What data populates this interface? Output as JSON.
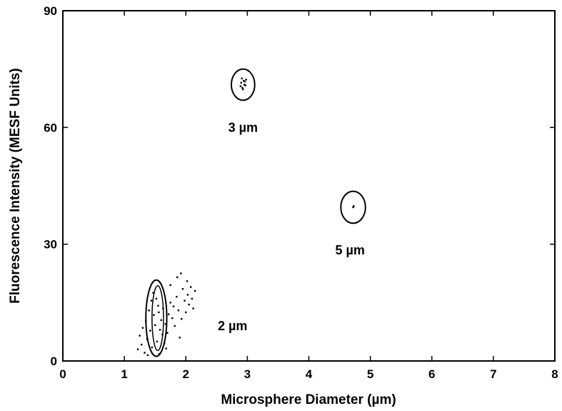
{
  "chart_data": {
    "type": "scatter",
    "xlabel": "Microsphere Diameter (µm)",
    "ylabel": "Fluorescence Intensity (MESF Units)",
    "xlim": [
      0,
      8
    ],
    "ylim": [
      0,
      90
    ],
    "x_ticks": [
      0,
      1,
      2,
      3,
      4,
      5,
      6,
      7,
      8
    ],
    "y_ticks": [
      0,
      30,
      60,
      90
    ],
    "grid": false,
    "legend": "none",
    "clusters": [
      {
        "label": "2 µm",
        "center": [
          1.52,
          11.0
        ],
        "radius_x": 0.17,
        "radius_y": 9.8,
        "points": [
          [
            1.22,
            3.0
          ],
          [
            1.25,
            6.5
          ],
          [
            1.28,
            4.2
          ],
          [
            1.3,
            8.5
          ],
          [
            1.33,
            2.1
          ],
          [
            1.35,
            10.2
          ],
          [
            1.37,
            5.6
          ],
          [
            1.4,
            13.0
          ],
          [
            1.42,
            7.8
          ],
          [
            1.44,
            15.5
          ],
          [
            1.45,
            3.5
          ],
          [
            1.47,
            17.5
          ],
          [
            1.48,
            11.8
          ],
          [
            1.5,
            9.2
          ],
          [
            1.52,
            16.0
          ],
          [
            1.53,
            5.0
          ],
          [
            1.55,
            14.2
          ],
          [
            1.56,
            12.5
          ],
          [
            1.57,
            1.8
          ],
          [
            1.58,
            8.0
          ],
          [
            1.6,
            10.5
          ],
          [
            1.62,
            6.8
          ],
          [
            1.63,
            13.5
          ],
          [
            1.65,
            4.5
          ],
          [
            1.67,
            9.5
          ],
          [
            1.7,
            7.2
          ],
          [
            1.72,
            12.0
          ],
          [
            1.75,
            15.0
          ],
          [
            1.78,
            11.0
          ],
          [
            1.8,
            14.0
          ],
          [
            1.82,
            9.0
          ],
          [
            1.85,
            16.5
          ],
          [
            1.88,
            13.0
          ],
          [
            1.9,
            6.0
          ],
          [
            1.93,
            10.8
          ],
          [
            1.95,
            18.5
          ],
          [
            1.98,
            15.5
          ],
          [
            2.0,
            12.5
          ],
          [
            2.03,
            17.0
          ],
          [
            2.05,
            14.5
          ],
          [
            2.08,
            19.0
          ],
          [
            2.1,
            16.0
          ],
          [
            2.12,
            13.5
          ],
          [
            2.15,
            18.0
          ],
          [
            1.86,
            21.5
          ],
          [
            1.92,
            22.5
          ],
          [
            1.75,
            19.5
          ],
          [
            2.02,
            20.5
          ],
          [
            1.68,
            3.2
          ],
          [
            1.38,
            1.5
          ]
        ]
      },
      {
        "label": "3 µm",
        "center": [
          2.93,
          71.0
        ],
        "radius_x": 0.19,
        "radius_y": 4.0,
        "points": [
          [
            2.9,
            71.5
          ],
          [
            2.92,
            70.2
          ],
          [
            2.94,
            72.0
          ],
          [
            2.95,
            71.0
          ],
          [
            2.97,
            70.8
          ],
          [
            2.91,
            72.6
          ],
          [
            2.96,
            71.8
          ],
          [
            2.93,
            69.8
          ],
          [
            2.98,
            72.3
          ],
          [
            2.89,
            70.6
          ]
        ]
      },
      {
        "label": "5 µm",
        "center": [
          4.72,
          39.5
        ],
        "radius_x": 0.2,
        "radius_y": 4.1,
        "points": [
          [
            4.72,
            39.5
          ],
          [
            4.73,
            39.8
          ]
        ]
      }
    ]
  }
}
